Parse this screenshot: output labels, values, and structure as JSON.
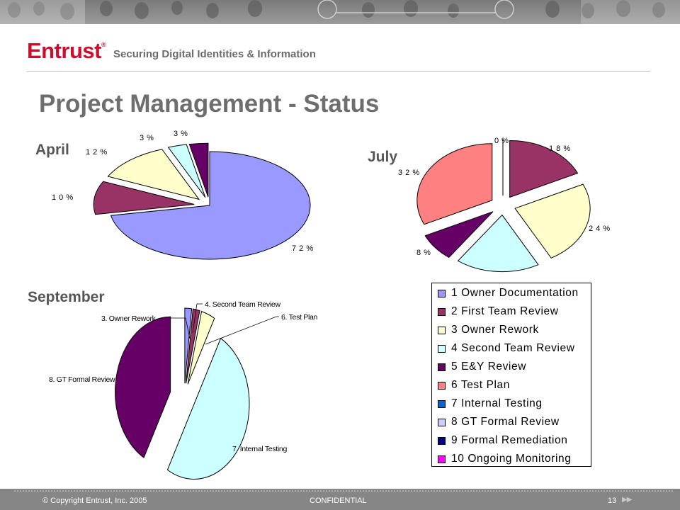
{
  "header": {
    "logo": "Entrust",
    "logo_mark": "®",
    "tagline": "Securing Digital Identities & Information"
  },
  "slide": {
    "title": "Project Management - Status"
  },
  "legend": {
    "items": [
      {
        "label": "1 Owner Documentation",
        "color": "#9999ff"
      },
      {
        "label": "2 First Team Review",
        "color": "#993366"
      },
      {
        "label": "3 Owner Rework",
        "color": "#ffffcc"
      },
      {
        "label": "4 Second Team Review",
        "color": "#ccffff"
      },
      {
        "label": "5 E&Y Review",
        "color": "#660066"
      },
      {
        "label": "6 Test Plan",
        "color": "#ff8080"
      },
      {
        "label": "7 Internal Testing",
        "color": "#0066cc"
      },
      {
        "label": "8 GT Formal Review",
        "color": "#ccccff"
      },
      {
        "label": "9 Formal Remediation",
        "color": "#000080"
      },
      {
        "label": "10 Ongoing Monitoring",
        "color": "#ff00ff"
      }
    ]
  },
  "chart_data": [
    {
      "type": "pie",
      "title": "April",
      "slices": [
        {
          "category": "1 Owner Documentation",
          "value": 72,
          "label": "7 2 %",
          "color": "#9999ff"
        },
        {
          "category": "2 First Team Review",
          "value": 10,
          "label": "1 0 %",
          "color": "#993366"
        },
        {
          "category": "3 Owner Rework",
          "value": 12,
          "label": "1 2 %",
          "color": "#ffffcc"
        },
        {
          "category": "4 Second Team Review",
          "value": 3,
          "label": "3 %",
          "color": "#ccffff"
        },
        {
          "category": "5 E&Y Review",
          "value": 3,
          "label": "3 %",
          "color": "#660066"
        }
      ]
    },
    {
      "type": "pie",
      "title": "July",
      "slices": [
        {
          "category": "2 First Team Review",
          "value": 18,
          "label": "1 8 %",
          "color": "#993366"
        },
        {
          "category": "3 Owner Rework",
          "value": 24,
          "label": "2 4 %",
          "color": "#ffffcc"
        },
        {
          "category": "4 Second Team Review",
          "value": 18,
          "label": "",
          "color": "#ccffff"
        },
        {
          "category": "5 E&Y Review",
          "value": 8,
          "label": "8 %",
          "color": "#660066"
        },
        {
          "category": "6 Test Plan",
          "value": 32,
          "label": "3 2 %",
          "color": "#ff8080"
        },
        {
          "category": "1 Owner Documentation",
          "value": 0,
          "label": "0 %",
          "color": "#9999ff"
        }
      ]
    },
    {
      "type": "pie",
      "title": "September",
      "slices": [
        {
          "category": "3. Owner Rework",
          "value": 2,
          "label": "3. Owner Rework",
          "color": "#9999ff"
        },
        {
          "category": "4. Second Team Review",
          "value": 2,
          "label": "4. Second Team Review",
          "color": "#993366"
        },
        {
          "category": "6. Test Plan",
          "value": 4,
          "label": "6. Test Plan",
          "color": "#ffffcc"
        },
        {
          "category": "7. Internal Testing",
          "value": 50,
          "label": "7. Internal Testing",
          "color": "#ccffff"
        },
        {
          "category": "8. GT Formal Review",
          "value": 42,
          "label": "8. GT Formal Review",
          "color": "#660066"
        }
      ]
    }
  ],
  "footer": {
    "copyright": "© Copyright Entrust, Inc. 2005",
    "confidential": "CONFIDENTIAL",
    "page_number": "13"
  }
}
